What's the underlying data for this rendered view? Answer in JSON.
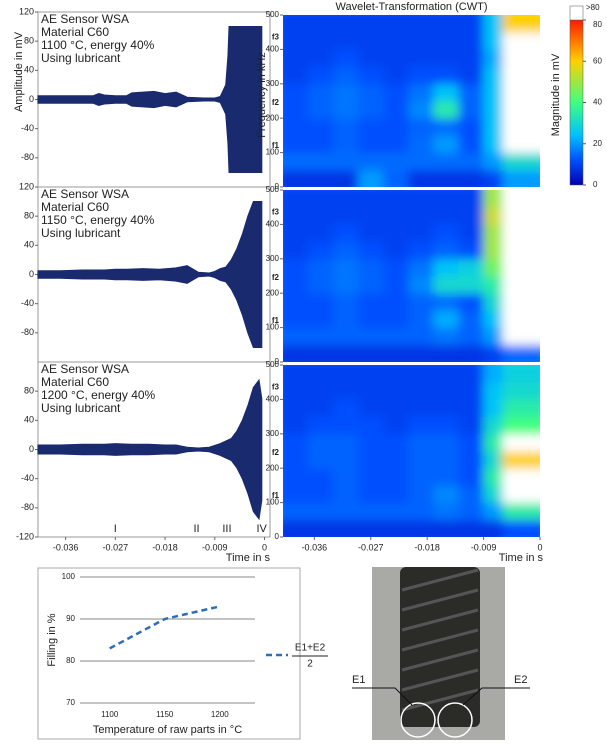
{
  "chart_data": [
    {
      "type": "waveform",
      "ylabel": "Amplitude in mV",
      "text": [
        "AE Sensor WSA",
        "Material C60",
        "1100 °C, energy 40%",
        "Using lubricant"
      ],
      "color": "#1a2a6e",
      "xlim": [
        -0.041,
        0.001
      ],
      "ylim": [
        -120,
        120
      ],
      "yticks": [
        -80,
        -40,
        0,
        40,
        80,
        120
      ],
      "x": [
        -0.041,
        -0.037,
        -0.033,
        -0.031,
        -0.03,
        -0.029,
        -0.027,
        -0.025,
        -0.024,
        -0.022,
        -0.02,
        -0.018,
        -0.016,
        -0.014,
        -0.011,
        -0.009,
        -0.008,
        -0.007,
        -0.0066,
        -0.0064,
        -0.003,
        -0.0005
      ],
      "values": [
        5,
        5,
        5,
        5,
        8,
        6,
        5,
        5,
        9,
        10,
        11,
        8,
        10,
        3,
        2,
        2,
        4,
        20,
        60,
        100,
        100,
        100
      ]
    },
    {
      "type": "waveform",
      "text": [
        "AE Sensor WSA",
        "Material C60",
        "1150 °C, energy 40%",
        "Using lubricant"
      ],
      "color": "#1a2a6e",
      "xlim": [
        -0.041,
        0.001
      ],
      "ylim": [
        -120,
        120
      ],
      "yticks": [
        -80,
        -40,
        0,
        40,
        80,
        120
      ],
      "x": [
        -0.041,
        -0.037,
        -0.033,
        -0.029,
        -0.027,
        -0.025,
        -0.022,
        -0.019,
        -0.016,
        -0.014,
        -0.012,
        -0.01,
        -0.009,
        -0.008,
        -0.007,
        -0.006,
        -0.005,
        -0.004,
        -0.003,
        -0.002,
        -0.0005
      ],
      "values": [
        5,
        5,
        6,
        6,
        7,
        7,
        8,
        7,
        9,
        12,
        3,
        2,
        4,
        8,
        10,
        20,
        35,
        55,
        80,
        100,
        100
      ]
    },
    {
      "type": "waveform",
      "text": [
        "AE Sensor WSA",
        "Material C60",
        "1200 °C, energy 40%",
        "Using lubricant"
      ],
      "color": "#1a2a6e",
      "xlim": [
        -0.041,
        0.001
      ],
      "ylim": [
        -120,
        120
      ],
      "yticks": [
        -120,
        -80,
        -40,
        0,
        40,
        80
      ],
      "xticks": [
        -0.036,
        -0.027,
        -0.018,
        -0.009,
        0
      ],
      "xlabel": "Time in s",
      "phases": {
        "labels": [
          "I",
          "II",
          "III",
          "IV"
        ],
        "x": [
          -0.027,
          -0.0123,
          -0.0068,
          -0.0005
        ]
      },
      "x": [
        -0.041,
        -0.037,
        -0.033,
        -0.029,
        -0.027,
        -0.024,
        -0.021,
        -0.018,
        -0.016,
        -0.014,
        -0.012,
        -0.01,
        -0.008,
        -0.006,
        -0.005,
        -0.004,
        -0.003,
        -0.002,
        -0.001,
        -0.0005
      ],
      "values": [
        6,
        6,
        7,
        7,
        8,
        7,
        7,
        6,
        6,
        3,
        2,
        3,
        8,
        15,
        25,
        40,
        60,
        85,
        95,
        70
      ]
    },
    {
      "type": "heatmap",
      "title": "Wavelet-Transformation (CWT)",
      "ylabel": "Frequency in kHz",
      "xlim": [
        -0.041,
        0
      ],
      "ylim": [
        0,
        500
      ],
      "yticks": [
        0,
        100,
        200,
        300,
        400,
        500
      ],
      "freq_marks": [
        {
          "value": 120,
          "label": "f1"
        },
        {
          "value": 245,
          "label": "f2"
        },
        {
          "value": 435,
          "label": "f3"
        }
      ],
      "x_edges": [
        -0.041,
        -0.037,
        -0.033,
        -0.029,
        -0.025,
        -0.021,
        -0.017,
        -0.013,
        -0.009,
        -0.006,
        0
      ],
      "y_edges": [
        0,
        50,
        100,
        150,
        200,
        250,
        300,
        350,
        400,
        450,
        500
      ],
      "values": [
        [
          8,
          8,
          8,
          20,
          14,
          8,
          8,
          8,
          10,
          20
        ],
        [
          15,
          15,
          15,
          15,
          15,
          15,
          15,
          15,
          20,
          30
        ],
        [
          12,
          12,
          14,
          12,
          12,
          15,
          20,
          12,
          25,
          90
        ],
        [
          12,
          12,
          14,
          12,
          12,
          14,
          15,
          12,
          25,
          90
        ],
        [
          12,
          14,
          16,
          14,
          12,
          18,
          35,
          14,
          25,
          90
        ],
        [
          12,
          14,
          16,
          14,
          12,
          16,
          25,
          14,
          25,
          90
        ],
        [
          10,
          12,
          14,
          12,
          10,
          12,
          12,
          10,
          25,
          90
        ],
        [
          10,
          10,
          12,
          10,
          10,
          10,
          10,
          10,
          22,
          90
        ],
        [
          10,
          10,
          10,
          10,
          10,
          10,
          10,
          10,
          25,
          90
        ],
        [
          10,
          10,
          10,
          10,
          10,
          10,
          10,
          10,
          25,
          60
        ]
      ]
    },
    {
      "type": "heatmap",
      "xlim": [
        -0.041,
        0
      ],
      "ylim": [
        0,
        500
      ],
      "yticks": [
        0,
        100,
        200,
        300,
        400,
        500
      ],
      "freq_marks": [
        {
          "value": 120,
          "label": "f1"
        },
        {
          "value": 245,
          "label": "f2"
        },
        {
          "value": 435,
          "label": "f3"
        }
      ],
      "x_edges": [
        -0.041,
        -0.037,
        -0.033,
        -0.029,
        -0.025,
        -0.021,
        -0.017,
        -0.013,
        -0.009,
        -0.006,
        0
      ],
      "y_edges": [
        0,
        50,
        100,
        150,
        200,
        250,
        300,
        350,
        400,
        450,
        500
      ],
      "values": [
        [
          8,
          8,
          8,
          8,
          8,
          8,
          8,
          8,
          10,
          15
        ],
        [
          14,
          14,
          14,
          14,
          14,
          14,
          16,
          14,
          20,
          90
        ],
        [
          12,
          12,
          14,
          12,
          12,
          14,
          22,
          14,
          25,
          90
        ],
        [
          12,
          12,
          14,
          12,
          12,
          14,
          15,
          12,
          30,
          90
        ],
        [
          12,
          14,
          16,
          14,
          12,
          18,
          30,
          30,
          35,
          90
        ],
        [
          12,
          14,
          16,
          14,
          12,
          16,
          25,
          28,
          45,
          90
        ],
        [
          10,
          12,
          14,
          12,
          10,
          12,
          14,
          12,
          50,
          90
        ],
        [
          10,
          10,
          12,
          10,
          10,
          10,
          12,
          10,
          50,
          90
        ],
        [
          10,
          10,
          10,
          10,
          10,
          10,
          10,
          10,
          55,
          90
        ],
        [
          10,
          10,
          10,
          10,
          10,
          10,
          10,
          10,
          50,
          90
        ]
      ]
    },
    {
      "type": "heatmap",
      "xlim": [
        -0.041,
        0
      ],
      "ylim": [
        0,
        500
      ],
      "yticks": [
        0,
        100,
        200,
        300,
        400,
        500
      ],
      "xticks": [
        -0.036,
        -0.027,
        -0.018,
        -0.009,
        0
      ],
      "xlabel": "Time in s",
      "freq_marks": [
        {
          "value": 120,
          "label": "f1"
        },
        {
          "value": 245,
          "label": "f2"
        },
        {
          "value": 435,
          "label": "f3"
        }
      ],
      "x_edges": [
        -0.041,
        -0.037,
        -0.033,
        -0.029,
        -0.025,
        -0.021,
        -0.017,
        -0.013,
        -0.009,
        -0.006,
        0
      ],
      "y_edges": [
        0,
        50,
        100,
        150,
        200,
        250,
        300,
        350,
        400,
        450,
        500
      ],
      "values": [
        [
          8,
          8,
          8,
          8,
          8,
          8,
          8,
          8,
          8,
          12
        ],
        [
          14,
          14,
          14,
          14,
          14,
          14,
          16,
          14,
          20,
          35
        ],
        [
          12,
          12,
          14,
          12,
          12,
          14,
          18,
          14,
          30,
          90
        ],
        [
          12,
          12,
          14,
          12,
          12,
          14,
          14,
          12,
          35,
          90
        ],
        [
          12,
          14,
          14,
          12,
          12,
          14,
          14,
          12,
          30,
          60
        ],
        [
          12,
          14,
          14,
          12,
          12,
          14,
          14,
          12,
          35,
          90
        ],
        [
          10,
          12,
          12,
          12,
          10,
          12,
          12,
          10,
          30,
          40
        ],
        [
          10,
          10,
          12,
          10,
          10,
          10,
          10,
          10,
          25,
          35
        ],
        [
          10,
          10,
          10,
          10,
          10,
          10,
          10,
          10,
          25,
          30
        ],
        [
          10,
          10,
          10,
          10,
          10,
          10,
          10,
          10,
          22,
          28
        ]
      ]
    },
    {
      "type": "line",
      "ylabel": "Filling in %",
      "xlabel": "Temperature of raw parts in °C",
      "xlim": [
        1073,
        1232
      ],
      "ylim": [
        70,
        100
      ],
      "xticks": [
        1100,
        1150,
        1200
      ],
      "yticks": [
        70,
        80,
        90,
        100
      ],
      "grid": true,
      "x": [
        1100,
        1150,
        1200
      ],
      "series": [
        {
          "name": "E1+E2",
          "denominator": "2",
          "color": "#2e6db4",
          "values": [
            83,
            90,
            93
          ]
        }
      ]
    }
  ],
  "colorbar": {
    "label": "Magnitude in mV",
    "lim": [
      0,
      80
    ],
    "ticks": [
      0,
      20,
      40,
      60,
      80
    ],
    "over_label": ">80"
  },
  "photo": {
    "labels": [
      "E1",
      "E2"
    ]
  }
}
